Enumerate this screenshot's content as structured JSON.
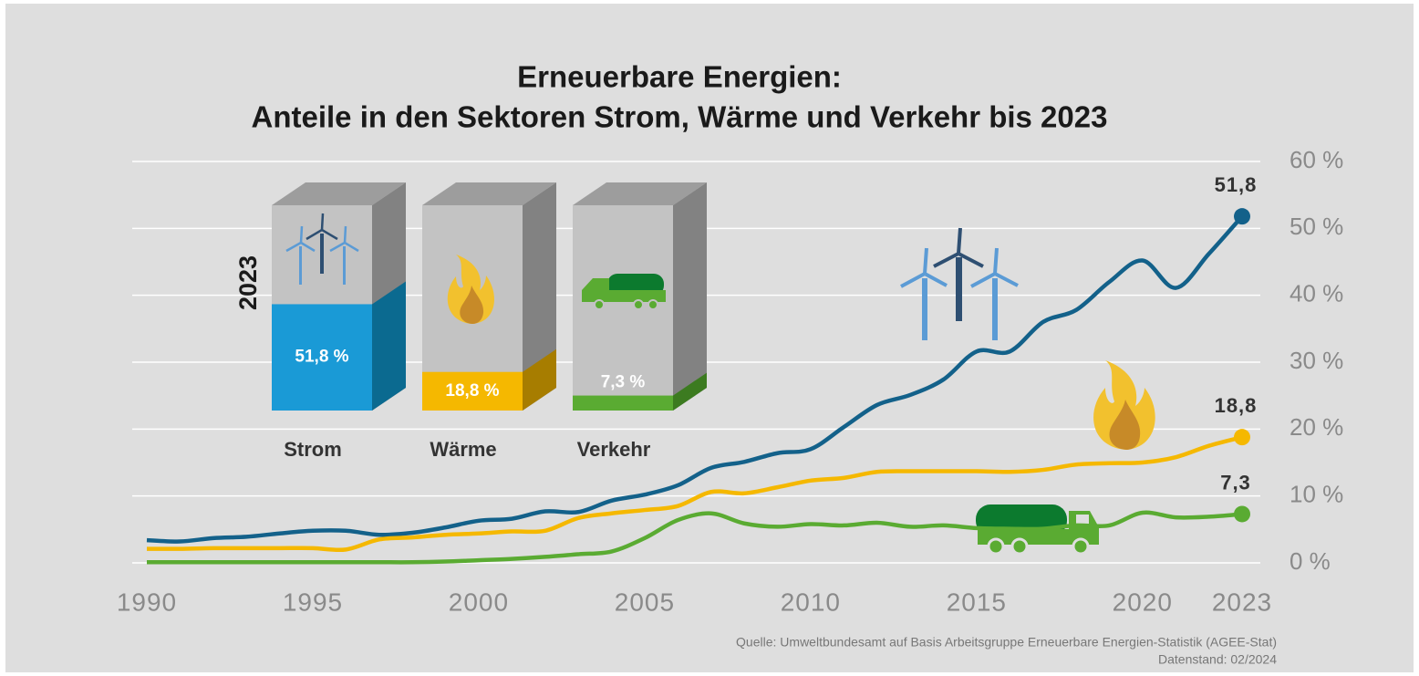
{
  "chart_data": [
    {
      "type": "line",
      "title": [
        "Erneuerbare Energien:",
        "Anteile in den Sektoren Strom, Wärme und Verkehr bis 2023"
      ],
      "source": [
        "Quelle: Umweltbundesamt auf Basis Arbeitsgruppe Erneuerbare Energien-Statistik (AGEE-Stat)",
        "Datenstand: 02/2024"
      ],
      "x": [
        1990,
        1991,
        1992,
        1993,
        1994,
        1995,
        1996,
        1997,
        1998,
        1999,
        2000,
        2001,
        2002,
        2003,
        2004,
        2005,
        2006,
        2007,
        2008,
        2009,
        2010,
        2011,
        2012,
        2013,
        2014,
        2015,
        2016,
        2017,
        2018,
        2019,
        2020,
        2021,
        2022,
        2023
      ],
      "series": [
        {
          "name": "Strom",
          "color": "#13618a",
          "values": [
            3.4,
            3.2,
            3.7,
            3.9,
            4.4,
            4.8,
            4.8,
            4.2,
            4.5,
            5.3,
            6.3,
            6.6,
            7.7,
            7.6,
            9.3,
            10.2,
            11.6,
            14.2,
            15.1,
            16.4,
            17.0,
            20.3,
            23.6,
            25.1,
            27.4,
            31.6,
            31.6,
            36.0,
            37.8,
            42.0,
            45.2,
            41.1,
            46.2,
            51.8
          ],
          "value_labels": [
            null,
            null,
            null,
            null,
            null,
            null,
            null,
            null,
            null,
            null,
            null,
            null,
            null,
            null,
            null,
            null,
            null,
            null,
            null,
            null,
            null,
            null,
            null,
            null,
            null,
            null,
            null,
            null,
            null,
            null,
            null,
            null,
            null,
            "51,8"
          ]
        },
        {
          "name": "Wärme",
          "color": "#f5b800",
          "values": [
            2.1,
            2.1,
            2.2,
            2.2,
            2.2,
            2.2,
            2.0,
            3.5,
            3.8,
            4.2,
            4.4,
            4.7,
            4.8,
            6.7,
            7.4,
            7.9,
            8.5,
            10.6,
            10.4,
            11.3,
            12.3,
            12.7,
            13.6,
            13.7,
            13.7,
            13.7,
            13.6,
            13.9,
            14.7,
            14.9,
            15.0,
            15.8,
            17.5,
            18.8
          ],
          "value_labels": [
            null,
            null,
            null,
            null,
            null,
            null,
            null,
            null,
            null,
            null,
            null,
            null,
            null,
            null,
            null,
            null,
            null,
            null,
            null,
            null,
            null,
            null,
            null,
            null,
            null,
            null,
            null,
            null,
            null,
            null,
            null,
            null,
            null,
            "18,8"
          ]
        },
        {
          "name": "Verkehr",
          "color": "#5aab32",
          "values": [
            0.1,
            0.1,
            0.1,
            0.1,
            0.1,
            0.1,
            0.1,
            0.1,
            0.1,
            0.2,
            0.4,
            0.6,
            0.9,
            1.3,
            1.7,
            3.7,
            6.4,
            7.4,
            5.9,
            5.4,
            5.8,
            5.6,
            6.0,
            5.4,
            5.6,
            5.2,
            5.1,
            5.1,
            5.6,
            5.6,
            7.5,
            6.8,
            6.9,
            7.3
          ],
          "value_labels": [
            null,
            null,
            null,
            null,
            null,
            null,
            null,
            null,
            null,
            null,
            null,
            null,
            null,
            null,
            null,
            null,
            null,
            null,
            null,
            null,
            null,
            null,
            null,
            null,
            null,
            null,
            null,
            null,
            null,
            null,
            null,
            null,
            null,
            "7,3"
          ]
        }
      ],
      "xlim": [
        1990,
        2023
      ],
      "xticks": [
        1990,
        1995,
        2000,
        2005,
        2010,
        2015,
        2020,
        2023
      ],
      "ylim": [
        0,
        60
      ],
      "yticks": [
        {
          "value": 0,
          "label": "0 %"
        },
        {
          "value": 10,
          "label": "10 %"
        },
        {
          "value": 20,
          "label": "20 %"
        },
        {
          "value": 30,
          "label": "30 %"
        },
        {
          "value": 40,
          "label": "40 %"
        },
        {
          "value": 50,
          "label": "50 %"
        },
        {
          "value": 60,
          "label": "60 %"
        }
      ],
      "grid": true
    },
    {
      "type": "bar",
      "label": "2023",
      "categories": [
        "Strom",
        "Wärme",
        "Verkehr"
      ],
      "values": [
        51.8,
        18.8,
        7.3
      ],
      "value_labels": [
        "51,8 %",
        "18,8 %",
        "7,3 %"
      ],
      "colors": [
        "#1a9ad6",
        "#f5b800",
        "#5aab32"
      ],
      "ylim": [
        0,
        100
      ]
    }
  ]
}
